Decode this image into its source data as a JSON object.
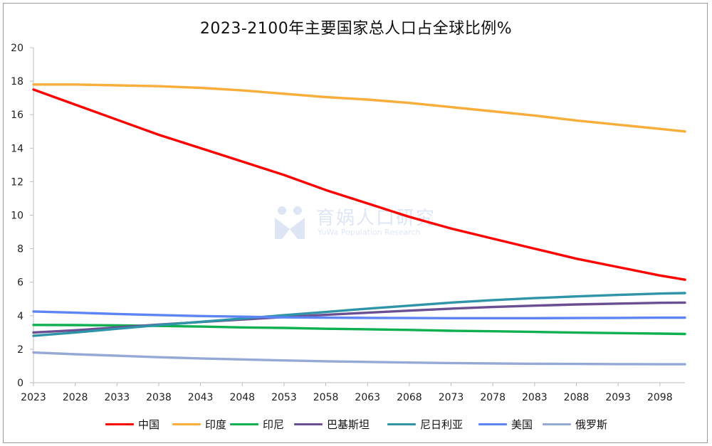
{
  "chart_data": {
    "type": "line",
    "title": "2023-2100年主要国家总人口占全球比例%",
    "xlabel": "",
    "ylabel": "",
    "ylim": [
      0,
      20
    ],
    "yticks": [
      0,
      2,
      4,
      6,
      8,
      10,
      12,
      14,
      16,
      18,
      20
    ],
    "xlim": [
      2023,
      2101
    ],
    "xticks": [
      2023,
      2028,
      2033,
      2038,
      2043,
      2048,
      2053,
      2058,
      2063,
      2068,
      2073,
      2078,
      2083,
      2088,
      2093,
      2098
    ],
    "grid": false,
    "legend_position": "bottom",
    "x": [
      2023,
      2028,
      2033,
      2038,
      2043,
      2048,
      2053,
      2058,
      2063,
      2068,
      2073,
      2078,
      2083,
      2088,
      2093,
      2098,
      2101
    ],
    "series": [
      {
        "name": "中国",
        "color": "#ff0000",
        "values": [
          17.5,
          16.6,
          15.7,
          14.8,
          14.0,
          13.2,
          12.4,
          11.5,
          10.7,
          9.9,
          9.2,
          8.6,
          8.0,
          7.4,
          6.9,
          6.4,
          6.15
        ]
      },
      {
        "name": "印度",
        "color": "#f9ad3a",
        "values": [
          17.8,
          17.8,
          17.75,
          17.7,
          17.6,
          17.45,
          17.25,
          17.05,
          16.9,
          16.7,
          16.45,
          16.2,
          15.95,
          15.65,
          15.4,
          15.15,
          15.0
        ]
      },
      {
        "name": "印尼",
        "color": "#10b050",
        "values": [
          3.45,
          3.44,
          3.42,
          3.39,
          3.35,
          3.3,
          3.27,
          3.22,
          3.19,
          3.15,
          3.1,
          3.07,
          3.03,
          2.99,
          2.96,
          2.93,
          2.91
        ]
      },
      {
        "name": "巴基斯坦",
        "color": "#6a4f93",
        "values": [
          3.0,
          3.13,
          3.3,
          3.47,
          3.62,
          3.77,
          3.92,
          4.05,
          4.18,
          4.3,
          4.42,
          4.52,
          4.6,
          4.67,
          4.72,
          4.77,
          4.78
        ]
      },
      {
        "name": "尼日利亚",
        "color": "#2f94a8",
        "values": [
          2.8,
          3.0,
          3.22,
          3.44,
          3.63,
          3.83,
          4.03,
          4.22,
          4.42,
          4.6,
          4.78,
          4.93,
          5.05,
          5.15,
          5.24,
          5.32,
          5.35
        ]
      },
      {
        "name": "美国",
        "color": "#5d84f4",
        "values": [
          4.25,
          4.18,
          4.1,
          4.04,
          3.98,
          3.94,
          3.9,
          3.88,
          3.87,
          3.86,
          3.85,
          3.85,
          3.85,
          3.86,
          3.87,
          3.88,
          3.88
        ]
      },
      {
        "name": "俄罗斯",
        "color": "#94a9d6",
        "values": [
          1.8,
          1.7,
          1.61,
          1.52,
          1.45,
          1.39,
          1.33,
          1.28,
          1.24,
          1.2,
          1.17,
          1.15,
          1.13,
          1.12,
          1.11,
          1.1,
          1.1
        ]
      }
    ]
  },
  "watermark": {
    "text_cn": "育娲人口研究",
    "text_en": "YuWa Population Research",
    "logo_icon": "yuwa-logo-icon"
  }
}
